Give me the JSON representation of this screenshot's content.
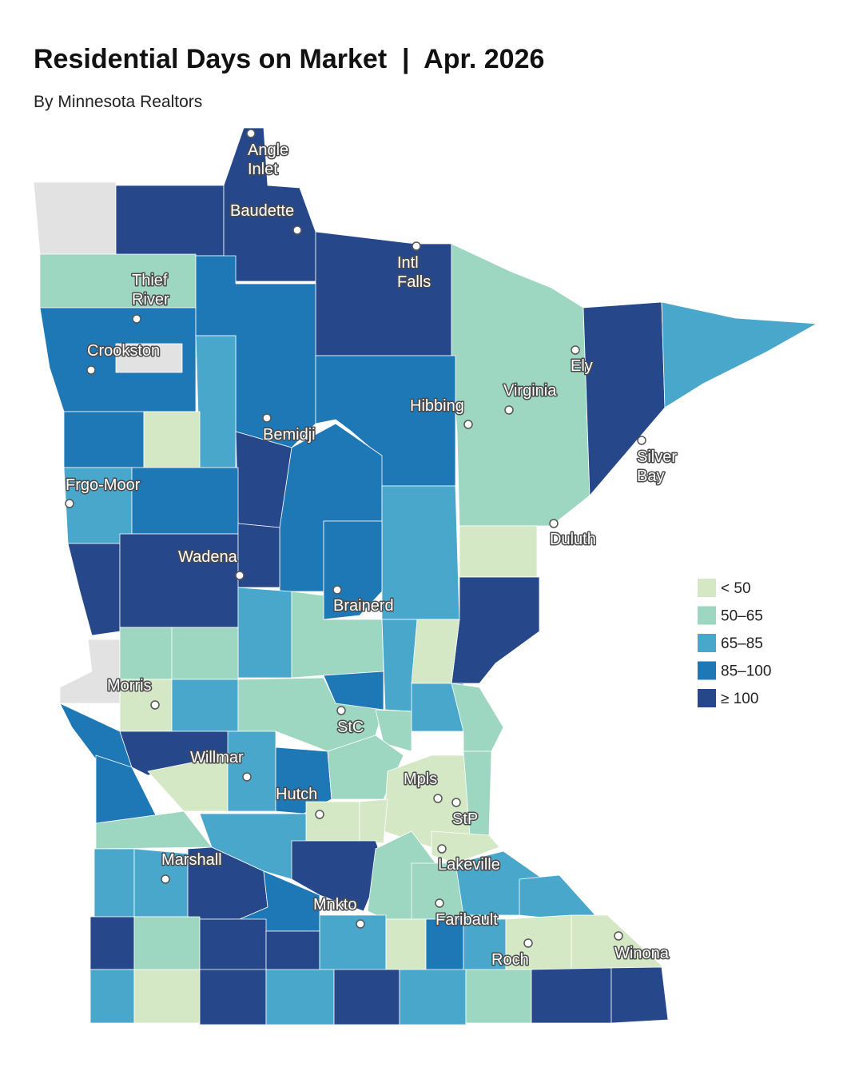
{
  "header": {
    "title": "Residential Days on Market  |  Apr. 2026",
    "subtitle": "By Minnesota Realtors"
  },
  "legend": [
    {
      "label": "< 50",
      "color": "#d4e8c5"
    },
    {
      "label": "50–65",
      "color": "#9dd6c1"
    },
    {
      "label": "65–85",
      "color": "#4aa7cc"
    },
    {
      "label": "85–100",
      "color": "#1f78b6"
    },
    {
      "label": "≥ 100",
      "color": "#26488b"
    }
  ],
  "cities": [
    {
      "lines": [
        "Angle",
        "Inlet"
      ]
    },
    {
      "lines": [
        "Baudette"
      ]
    },
    {
      "lines": [
        "Intl",
        "Falls"
      ]
    },
    {
      "lines": [
        "Thief",
        "River"
      ]
    },
    {
      "lines": [
        "Crookston"
      ]
    },
    {
      "lines": [
        "Bemidji"
      ]
    },
    {
      "lines": [
        "Ely"
      ]
    },
    {
      "lines": [
        "Virginia"
      ]
    },
    {
      "lines": [
        "Hibbing"
      ]
    },
    {
      "lines": [
        "Silver",
        "Bay"
      ]
    },
    {
      "lines": [
        "Frgo-Moor"
      ]
    },
    {
      "lines": [
        "Duluth"
      ]
    },
    {
      "lines": [
        "Wadena"
      ]
    },
    {
      "lines": [
        "Brainerd"
      ]
    },
    {
      "lines": [
        "Morris"
      ]
    },
    {
      "lines": [
        "StC"
      ]
    },
    {
      "lines": [
        "Willmar"
      ]
    },
    {
      "lines": [
        "Mpls"
      ]
    },
    {
      "lines": [
        "StP"
      ]
    },
    {
      "lines": [
        "Hutch"
      ]
    },
    {
      "lines": [
        "Lakeville"
      ]
    },
    {
      "lines": [
        "Marshall"
      ]
    },
    {
      "lines": [
        "Mnkto"
      ]
    },
    {
      "lines": [
        "Faribault"
      ]
    },
    {
      "lines": [
        "Roch"
      ]
    },
    {
      "lines": [
        "Winona"
      ]
    }
  ]
}
